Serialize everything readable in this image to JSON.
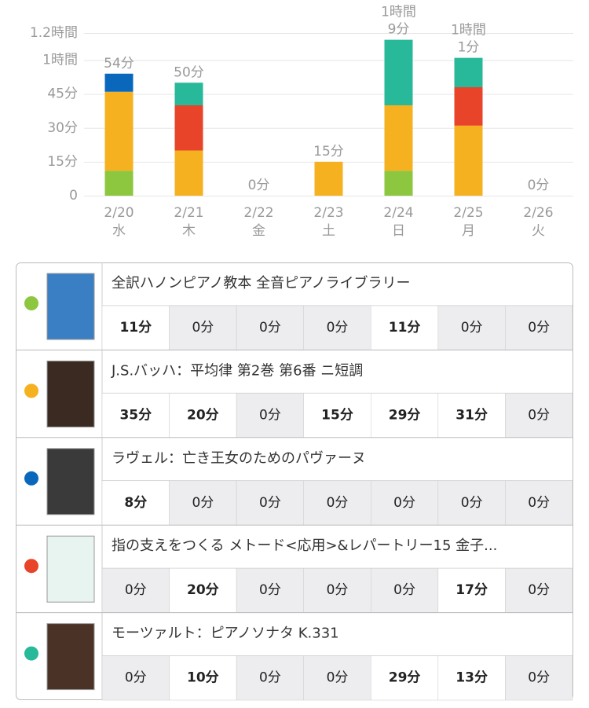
{
  "chart_data": {
    "type": "stacked-bar",
    "categories": [
      "2/20",
      "2/21",
      "2/22",
      "2/23",
      "2/24",
      "2/25",
      "2/26"
    ],
    "weekdays": [
      "水",
      "木",
      "金",
      "土",
      "日",
      "月",
      "火"
    ],
    "ylim": [
      0,
      72
    ],
    "yticks": [
      0,
      {
        "value": 15,
        "label": "15分"
      },
      {
        "value": 30,
        "label": "30分"
      },
      {
        "value": 45,
        "label": "45分"
      },
      {
        "value": 60,
        "label": "1時間"
      },
      {
        "value": 72,
        "label": "1.2時間"
      }
    ],
    "grid": true,
    "totals": [
      54,
      50,
      0,
      15,
      69,
      61,
      0
    ],
    "total_labels": [
      [
        "54分"
      ],
      [
        "50分"
      ],
      [
        "0分"
      ],
      [
        "15分"
      ],
      [
        "1時間",
        "9分"
      ],
      [
        "1時間",
        "1分"
      ],
      [
        "0分"
      ]
    ],
    "series": [
      {
        "name": "全訳ハノンピアノ教本  全音ピアノライブラリー",
        "color": "#8dc63f",
        "values": [
          11,
          0,
          0,
          0,
          11,
          0,
          0
        ],
        "value_labels": [
          "11分",
          "0分",
          "0分",
          "0分",
          "11分",
          "0分",
          "0分"
        ]
      },
      {
        "name": "J.S.バッハ：平均律 第2巻 第6番 ニ短調",
        "color": "#f5b120",
        "values": [
          35,
          20,
          0,
          15,
          29,
          31,
          0
        ],
        "value_labels": [
          "35分",
          "20分",
          "0分",
          "15分",
          "29分",
          "31分",
          "0分"
        ]
      },
      {
        "name": "ラヴェル：亡き王女のためのパヴァーヌ",
        "color": "#0a68bc",
        "values": [
          8,
          0,
          0,
          0,
          0,
          0,
          0
        ],
        "value_labels": [
          "8分",
          "0分",
          "0分",
          "0分",
          "0分",
          "0分",
          "0分"
        ]
      },
      {
        "name": "指の支えをつくる メトード<応用>&レパートリー15 金子...",
        "color": "#e8442a",
        "values": [
          0,
          20,
          0,
          0,
          0,
          17,
          0
        ],
        "value_labels": [
          "0分",
          "20分",
          "0分",
          "0分",
          "0分",
          "17分",
          "0分"
        ]
      },
      {
        "name": "モーツァルト：ピアノソナタ K.331",
        "color": "#27b99a",
        "values": [
          0,
          10,
          0,
          0,
          29,
          13,
          0
        ],
        "value_labels": [
          "0分",
          "10分",
          "0分",
          "0分",
          "29分",
          "13分",
          "0分"
        ]
      }
    ]
  }
}
